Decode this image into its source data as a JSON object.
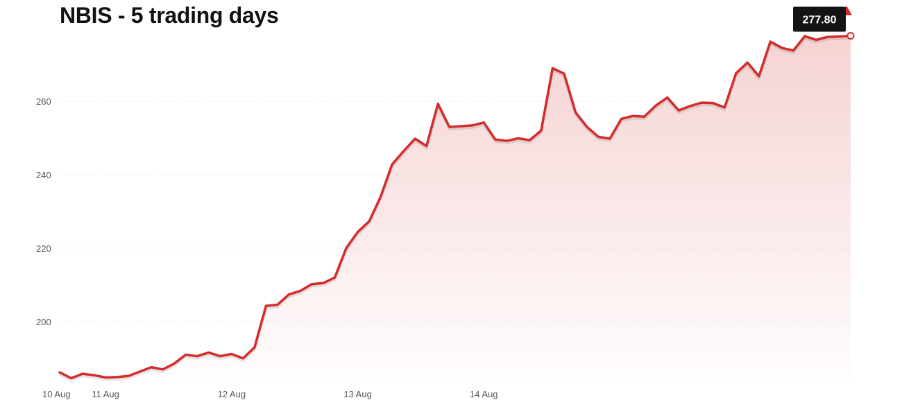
{
  "chart_title": "NBIS - 5 trading days",
  "trend_direction": "up",
  "colors": {
    "line": "#d42b2b",
    "area_top": "#f2c4c4",
    "grid": "#e6e6e6",
    "tag_bg": "#141414"
  },
  "chart_data": {
    "type": "area",
    "title": "NBIS - 5 trading days",
    "xlabel": "",
    "ylabel": "",
    "ylim": [
      184.5,
      280
    ],
    "grid": true,
    "legend": "none",
    "last_value": 277.8,
    "last_value_label": "277.80",
    "y_ticks": [
      {
        "value": 200,
        "label": "200"
      },
      {
        "value": 220,
        "label": "220"
      },
      {
        "value": 240,
        "label": "240"
      },
      {
        "value": 260,
        "label": "260"
      }
    ],
    "x_ticks": [
      {
        "index": 0,
        "label": "10 Aug"
      },
      {
        "index": 4,
        "label": "11 Aug"
      },
      {
        "index": 15,
        "label": "12 Aug"
      },
      {
        "index": 26,
        "label": "13 Aug"
      },
      {
        "index": 37,
        "label": "14 Aug"
      }
    ],
    "y": [
      186.2,
      184.6,
      185.8,
      185.4,
      184.8,
      184.9,
      185.2,
      186.4,
      187.6,
      187.0,
      188.6,
      191.0,
      190.6,
      191.6,
      190.6,
      191.2,
      190.0,
      193.0,
      204.3,
      204.6,
      207.4,
      208.4,
      210.2,
      210.5,
      212.0,
      220.0,
      224.4,
      227.3,
      234.0,
      242.8,
      246.4,
      249.8,
      247.8,
      259.3,
      253.0,
      253.2,
      253.4,
      254.2,
      249.6,
      249.2,
      249.9,
      249.4,
      252.0,
      269.0,
      267.5,
      257.0,
      253.0,
      250.3,
      249.8,
      255.2,
      256.0,
      255.8,
      258.8,
      261.0,
      257.5,
      258.7,
      259.6,
      259.5,
      258.3,
      267.6,
      270.5,
      266.8,
      276.2,
      274.5,
      273.8,
      277.7,
      276.7,
      277.5,
      277.6,
      277.8
    ]
  }
}
